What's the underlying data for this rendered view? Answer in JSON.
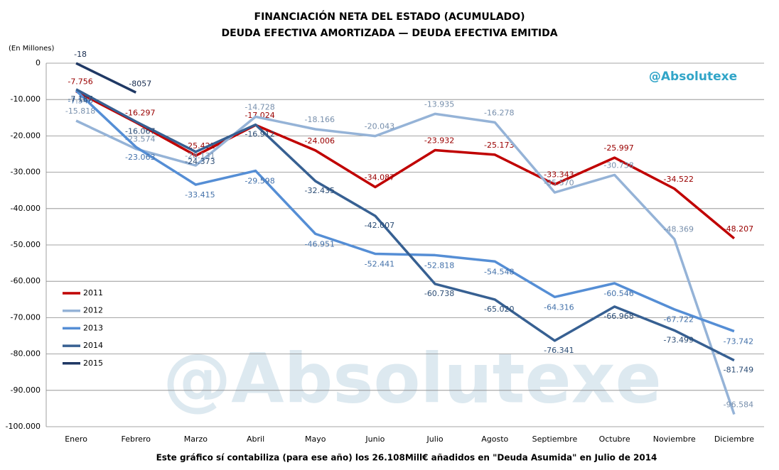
{
  "chart_data": {
    "type": "line",
    "title": "FINANCIACIÓN NETA DEL ESTADO (ACUMULADO)",
    "subtitle": "DEUDA EFECTIVA AMORTIZADA — DEUDA EFECTIVA EMITIDA",
    "y_axis_label": "(En Millones)",
    "footnote": "Este gráfico sí contabiliza (para ese año) los 26.108Mill€ añadidos en \"Deuda Asumida\" en Julio de 2014",
    "brand": "@Absolutexe",
    "watermark": "@Absolutexe",
    "categories": [
      "Enero",
      "Febrero",
      "Marzo",
      "Abril",
      "Mayo",
      "Junio",
      "Julio",
      "Agosto",
      "Septiembre",
      "Octubre",
      "Noviembre",
      "Diciembre"
    ],
    "ylim": [
      -100000,
      0
    ],
    "yticks": [
      0,
      {
        "value": -10000,
        "label": "-10.000"
      },
      {
        "value": -20000,
        "label": "-20.000"
      },
      {
        "value": -30000,
        "label": "-30.000"
      },
      {
        "value": -40000,
        "label": "-40.000"
      },
      {
        "value": -50000,
        "label": "-50.000"
      },
      {
        "value": -60000,
        "label": "-60.000"
      },
      {
        "value": -70000,
        "label": "-70.000"
      },
      {
        "value": -80000,
        "label": "-80.000"
      },
      {
        "value": -90000,
        "label": "-90.000"
      },
      {
        "value": -100000,
        "label": "-100.000"
      }
    ],
    "grid": true,
    "legend": "left",
    "series": [
      {
        "name": "2011",
        "color": "#c00000",
        "values": [
          -7756,
          -16297,
          -25421,
          -17024,
          -24006,
          -34087,
          -23932,
          -25173,
          -33343,
          -25997,
          -34522,
          -48207
        ],
        "value_labels": [
          "-7.756",
          "-16.297",
          "-25.421",
          "-17.024",
          "-24.006",
          "-34.087",
          "-23.932",
          "-25.173",
          "-33.343",
          "-25.997",
          "-34.522",
          "-48.207"
        ]
      },
      {
        "name": "2012",
        "color": "#95b3d7",
        "values": [
          -15818,
          -23574,
          -28131,
          -14728,
          -18166,
          -20043,
          -13935,
          -16278,
          -35570,
          -30738,
          -48369,
          -96584
        ],
        "value_labels": [
          "-15.818",
          "-23.574",
          "-28.131",
          "-14.728",
          "-18.166",
          "-20.043",
          "-13.935",
          "-16.278",
          "-35.570",
          "-30.738",
          "-48.369",
          "-96.584"
        ]
      },
      {
        "name": "2013",
        "color": "#558ed5",
        "values": [
          -7546,
          -23063,
          -33415,
          -29598,
          -46951,
          -52441,
          -52818,
          -54548,
          -64316,
          -60546,
          -67722,
          -73742
        ],
        "value_labels": [
          "-7.546",
          "-23.063",
          "-33.415",
          "-29.598",
          "-46.951",
          "-52.441",
          "-52.818",
          "-54.548",
          "-64.316",
          "-60.546",
          "-67.722",
          "-73.742"
        ]
      },
      {
        "name": "2014",
        "color": "#376092",
        "values": [
          -7187,
          -16067,
          -24373,
          -16912,
          -32435,
          -42007,
          -60738,
          -65020,
          -76341,
          -66968,
          -73499,
          -81749
        ],
        "value_labels": [
          "-7.187",
          "-16.067",
          "-24.373",
          "-16.912",
          "-32.435",
          "-42.007",
          "-60.738",
          "-65.020",
          "-76.341",
          "-66.968",
          "-73.499",
          "-81.749"
        ]
      },
      {
        "name": "2015",
        "color": "#1f3864",
        "values": [
          -18,
          -8057,
          null,
          null,
          null,
          null,
          null,
          null,
          null,
          null,
          null,
          null
        ],
        "value_labels": [
          "-18",
          "-8057",
          null,
          null,
          null,
          null,
          null,
          null,
          null,
          null,
          null,
          null
        ]
      }
    ]
  }
}
